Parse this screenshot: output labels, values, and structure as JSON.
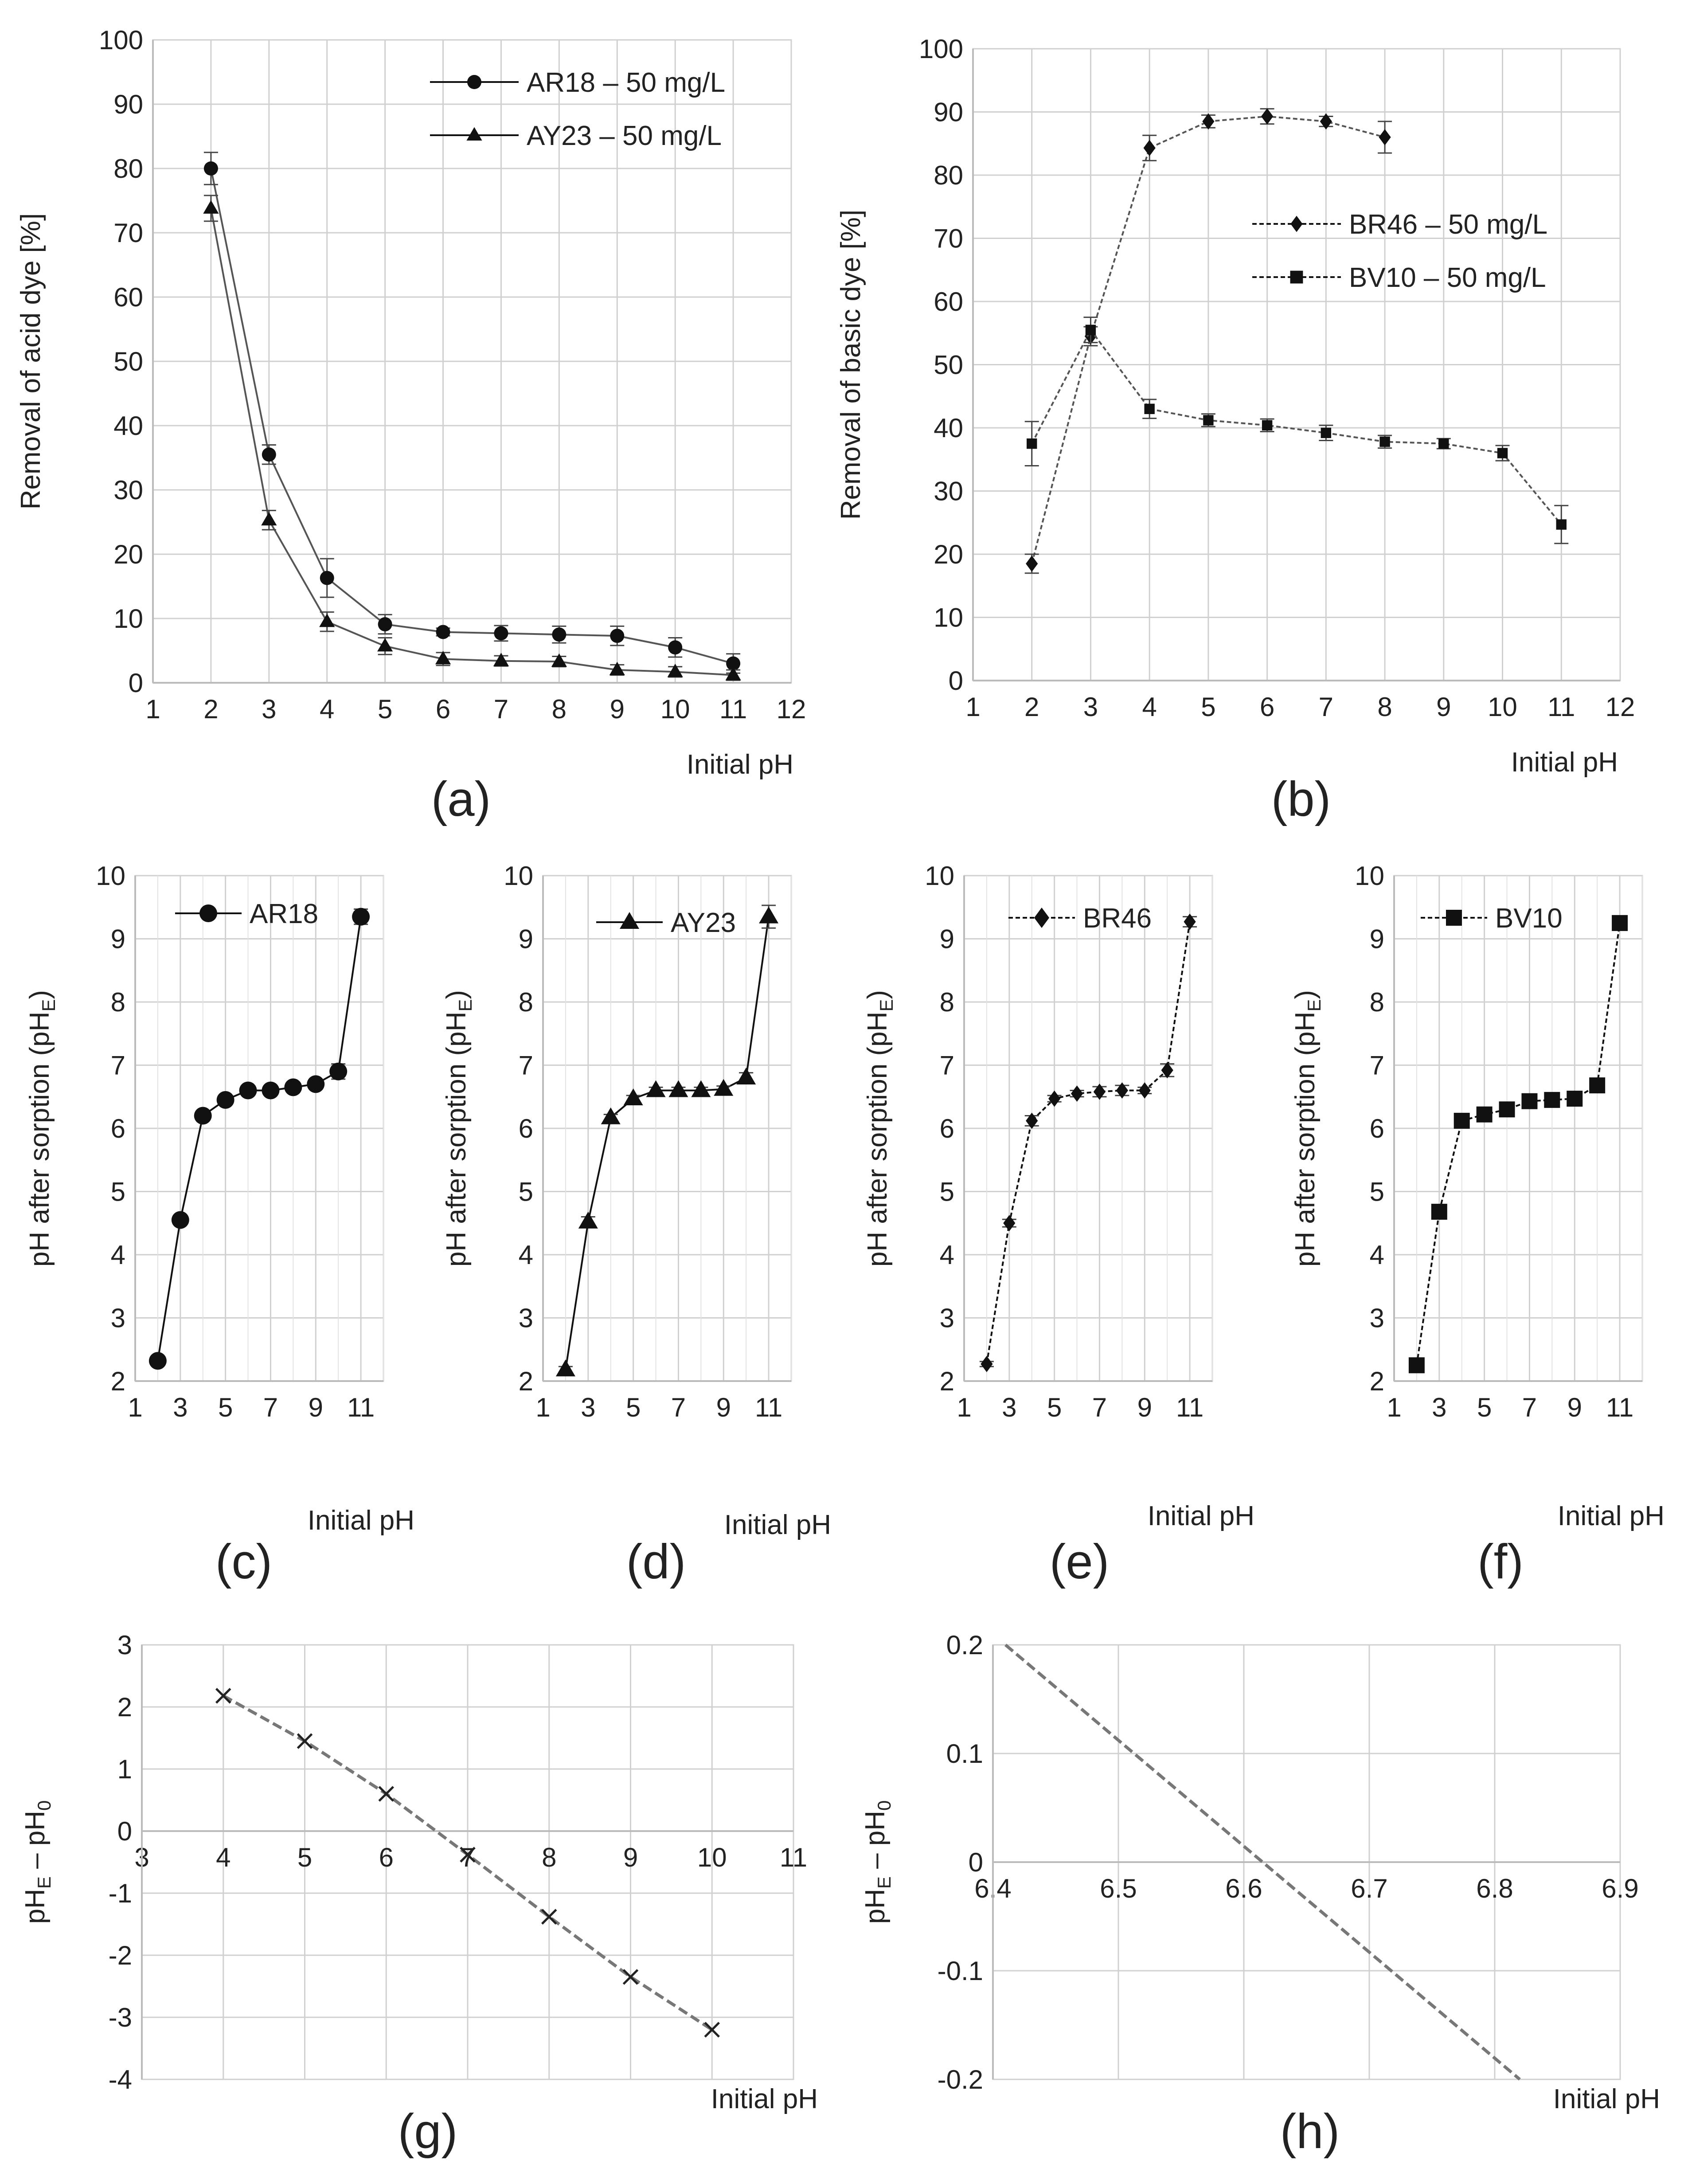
{
  "chart_data": [
    {
      "id": "a",
      "type": "line",
      "panel_label": "(a)",
      "xlabel": "Initial pH",
      "ylabel": "Removal of acid dye [%]",
      "xlim": [
        1,
        12
      ],
      "ylim": [
        0,
        100
      ],
      "xticks": [
        "1",
        "2",
        "3",
        "4",
        "5",
        "6",
        "7",
        "8",
        "9",
        "10",
        "11",
        "12"
      ],
      "yticks": [
        "0",
        "10",
        "20",
        "30",
        "40",
        "50",
        "60",
        "70",
        "80",
        "90",
        "100"
      ],
      "grid": true,
      "legend_position": "top-right",
      "series": [
        {
          "name": "AR18 – 50 mg/L",
          "marker": "circle",
          "dashed": false,
          "color": "#555555",
          "x": [
            2,
            3,
            4,
            5,
            6,
            7,
            8,
            9,
            10,
            11
          ],
          "y": [
            80,
            35.5,
            16.3,
            9.1,
            7.9,
            7.7,
            7.5,
            7.3,
            5.5,
            3
          ],
          "err": [
            2.5,
            1.5,
            3,
            1.5,
            0.6,
            1.2,
            1.3,
            1.5,
            1.5,
            1.5
          ]
        },
        {
          "name": "AY23 – 50 mg/L",
          "marker": "triangle",
          "dashed": false,
          "color": "#555555",
          "x": [
            2,
            3,
            4,
            5,
            6,
            7,
            8,
            9,
            10,
            11
          ],
          "y": [
            73.8,
            25.3,
            9.5,
            5.7,
            3.7,
            3.4,
            3.3,
            2,
            1.7,
            1.2
          ],
          "err": [
            2,
            1.5,
            1.5,
            1.3,
            1,
            0.8,
            0.8,
            0.8,
            0.8,
            0.8
          ]
        }
      ]
    },
    {
      "id": "b",
      "type": "line",
      "panel_label": "(b)",
      "xlabel": "Initial pH",
      "ylabel": "Removal of basic dye [%]",
      "xlim": [
        1,
        12
      ],
      "ylim": [
        0,
        100
      ],
      "xticks": [
        "1",
        "2",
        "3",
        "4",
        "5",
        "6",
        "7",
        "8",
        "9",
        "10",
        "11",
        "12"
      ],
      "yticks": [
        "0",
        "10",
        "20",
        "30",
        "40",
        "50",
        "60",
        "70",
        "80",
        "90",
        "100"
      ],
      "grid": true,
      "legend_position": "middle-right",
      "series": [
        {
          "name": "BR46 – 50 mg/L",
          "marker": "diamond",
          "dashed": true,
          "color": "#555555",
          "x": [
            2,
            3,
            4,
            5,
            6,
            7,
            8
          ],
          "y": [
            18.5,
            54.5,
            84.3,
            88.5,
            89.3,
            88.5,
            86
          ],
          "err": [
            1.5,
            1.5,
            2,
            1,
            1.2,
            0.8,
            2.5
          ]
        },
        {
          "name": "BV10 – 50 mg/L",
          "marker": "square",
          "dashed": true,
          "color": "#555555",
          "x": [
            2,
            3,
            4,
            5,
            6,
            7,
            8,
            9,
            10,
            11
          ],
          "y": [
            37.5,
            55.5,
            43,
            41.2,
            40.4,
            39.2,
            37.8,
            37.5,
            36,
            24.7
          ],
          "err": [
            3.5,
            2,
            1.5,
            1,
            1,
            1.2,
            1,
            0.8,
            1.2,
            3
          ]
        }
      ]
    },
    {
      "id": "c",
      "type": "line",
      "panel_label": "(c)",
      "xlabel": "Initial pH",
      "ylabel": "pH after sorption (pH",
      "ylabel_sub": "E",
      "ylabel_tail": ")",
      "xlim": [
        1,
        12
      ],
      "ylim": [
        2,
        10
      ],
      "xticks": [
        "1",
        "3",
        "5",
        "7",
        "9",
        "11"
      ],
      "xtick_values": [
        1,
        3,
        5,
        7,
        9,
        11
      ],
      "yticks": [
        "2",
        "3",
        "4",
        "5",
        "6",
        "7",
        "8",
        "9",
        "10"
      ],
      "grid": true,
      "legend_position": "top",
      "series": [
        {
          "name": "AR18",
          "marker": "circle",
          "dashed": false,
          "color": "#111111",
          "x": [
            2,
            3,
            4,
            5,
            6,
            7,
            8,
            9,
            10,
            11
          ],
          "y": [
            2.32,
            4.55,
            6.2,
            6.45,
            6.6,
            6.6,
            6.65,
            6.7,
            6.9,
            9.35
          ],
          "err": [
            0.05,
            0.05,
            0.05,
            0.05,
            0.05,
            0.05,
            0.05,
            0.05,
            0.12,
            0.12
          ]
        }
      ]
    },
    {
      "id": "d",
      "type": "line",
      "panel_label": "(d)",
      "xlabel": "Initial pH",
      "ylabel": "pH after sorption (pH",
      "ylabel_sub": "E",
      "ylabel_tail": ")",
      "xlim": [
        1,
        12
      ],
      "ylim": [
        2,
        10
      ],
      "xticks": [
        "1",
        "3",
        "5",
        "7",
        "9",
        "11"
      ],
      "xtick_values": [
        1,
        3,
        5,
        7,
        9,
        11
      ],
      "yticks": [
        "2",
        "3",
        "4",
        "5",
        "6",
        "7",
        "8",
        "9",
        "10"
      ],
      "grid": true,
      "legend_position": "top",
      "series": [
        {
          "name": "AY23",
          "marker": "triangle",
          "dashed": false,
          "color": "#111111",
          "x": [
            2,
            3,
            4,
            5,
            6,
            7,
            8,
            9,
            10,
            11
          ],
          "y": [
            2.18,
            4.52,
            6.17,
            6.47,
            6.6,
            6.6,
            6.6,
            6.62,
            6.8,
            9.35
          ],
          "err": [
            0.05,
            0.08,
            0.05,
            0.05,
            0.05,
            0.05,
            0.05,
            0.05,
            0.08,
            0.18
          ]
        }
      ]
    },
    {
      "id": "e",
      "type": "line",
      "panel_label": "(e)",
      "xlabel": "Initial pH",
      "ylabel": "pH after sorption (pH",
      "ylabel_sub": "E",
      "ylabel_tail": ")",
      "xlim": [
        1,
        12
      ],
      "ylim": [
        2,
        10
      ],
      "xticks": [
        "1",
        "3",
        "5",
        "7",
        "9",
        "11"
      ],
      "xtick_values": [
        1,
        3,
        5,
        7,
        9,
        11
      ],
      "yticks": [
        "2",
        "3",
        "4",
        "5",
        "6",
        "7",
        "8",
        "9",
        "10"
      ],
      "grid": true,
      "legend_position": "top",
      "series": [
        {
          "name": "BR46",
          "marker": "diamond",
          "dashed": true,
          "color": "#111111",
          "x": [
            2,
            3,
            4,
            5,
            6,
            7,
            8,
            9,
            10,
            11
          ],
          "y": [
            2.27,
            4.5,
            6.12,
            6.47,
            6.55,
            6.58,
            6.6,
            6.6,
            6.92,
            9.27
          ],
          "err": [
            0.04,
            0.06,
            0.08,
            0.05,
            0.05,
            0.08,
            0.08,
            0.05,
            0.1,
            0.08
          ]
        }
      ]
    },
    {
      "id": "f",
      "type": "line",
      "panel_label": "(f)",
      "xlabel": "Initial pH",
      "ylabel": "pH after sorption (pH",
      "ylabel_sub": "E",
      "ylabel_tail": ")",
      "xlim": [
        1,
        12
      ],
      "ylim": [
        2,
        10
      ],
      "xticks": [
        "1",
        "3",
        "5",
        "7",
        "9",
        "11"
      ],
      "xtick_values": [
        1,
        3,
        5,
        7,
        9,
        11
      ],
      "yticks": [
        "2",
        "3",
        "4",
        "5",
        "6",
        "7",
        "8",
        "9",
        "10"
      ],
      "grid": true,
      "legend_position": "top",
      "series": [
        {
          "name": "BV10",
          "marker": "square",
          "dashed": true,
          "color": "#111111",
          "x": [
            2,
            3,
            4,
            5,
            6,
            7,
            8,
            9,
            10,
            11
          ],
          "y": [
            2.25,
            4.68,
            6.12,
            6.22,
            6.3,
            6.43,
            6.45,
            6.47,
            6.68,
            9.25
          ],
          "err": [
            0.04,
            0.05,
            0.05,
            0.05,
            0.05,
            0.05,
            0.05,
            0.05,
            0.1,
            0.05
          ]
        }
      ]
    },
    {
      "id": "g",
      "type": "line",
      "panel_label": "(g)",
      "xlabel": "Initial pH",
      "ylabel": "pH",
      "ylabel_sub": "E",
      "ylabel_mid": " – pH",
      "ylabel_sub2": "0",
      "xlim": [
        3,
        11
      ],
      "ylim": [
        -4,
        3
      ],
      "xticks": [
        "3",
        "4",
        "5",
        "6",
        "7",
        "8",
        "9",
        "10",
        "11"
      ],
      "yticks": [
        "-4",
        "-3",
        "-2",
        "-1",
        "0",
        "1",
        "2",
        "3"
      ],
      "grid": true,
      "x_axis_at_zero": true,
      "series": [
        {
          "name": "",
          "marker": "x",
          "dashed": true,
          "color": "#777777",
          "x": [
            4,
            5,
            6,
            7,
            8,
            9,
            10
          ],
          "y": [
            2.18,
            1.45,
            0.6,
            -0.38,
            -1.38,
            -2.35,
            -3.2
          ]
        }
      ]
    },
    {
      "id": "h",
      "type": "line",
      "panel_label": "(h)",
      "xlabel": "Initial pH",
      "ylabel": "pH",
      "ylabel_sub": "E",
      "ylabel_mid": " – pH",
      "ylabel_sub2": "0",
      "xlim": [
        6.4,
        6.9
      ],
      "ylim": [
        -0.2,
        0.2
      ],
      "xticks": [
        "6.4",
        "6.5",
        "6.6",
        "6.7",
        "6.8",
        "6.9"
      ],
      "yticks": [
        "-0.2",
        "-0.1",
        "0",
        "0.1",
        "0.2"
      ],
      "grid": true,
      "x_axis_at_zero": true,
      "series": [
        {
          "name": "",
          "marker": "none",
          "dashed": true,
          "color": "#777777",
          "x": [
            6.41,
            6.82
          ],
          "y": [
            0.2,
            -0.2
          ]
        }
      ]
    }
  ]
}
